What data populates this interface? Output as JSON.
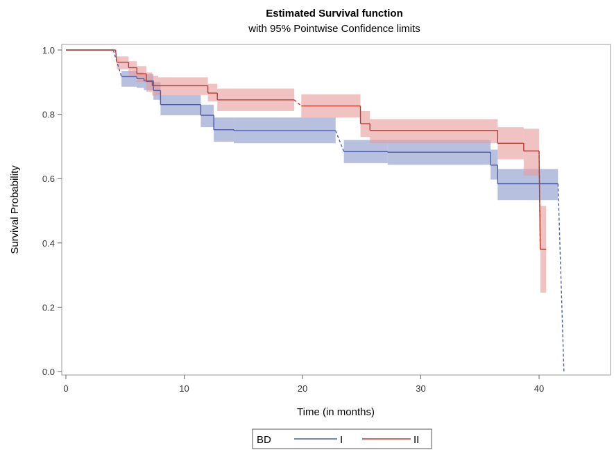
{
  "chart_data": {
    "type": "line",
    "title": "Estimated Survival function",
    "subtitle": "with 95% Pointwise Confidence limits",
    "xlabel": "Time (in months)",
    "ylabel": "Survival Probability",
    "xlim": [
      0,
      46
    ],
    "ylim": [
      0,
      1.02
    ],
    "xticks": [
      0,
      10,
      20,
      30,
      40
    ],
    "xtick_labels": [
      "0",
      "10",
      "20",
      "30",
      "40"
    ],
    "yticks": [
      0,
      0.2,
      0.4,
      0.6,
      0.8,
      1.0
    ],
    "ytick_labels": [
      "0.0",
      "0.2",
      "0.4",
      "0.6",
      "0.8",
      "1.0"
    ],
    "legend": {
      "title": "BD",
      "position": "bottom",
      "entries": [
        {
          "label": "I",
          "color": "#4a5aa8"
        },
        {
          "label": "II",
          "color": "#c0392b"
        }
      ]
    },
    "series": [
      {
        "name": "I",
        "color": "#4a5aa8",
        "band_color": "#8c99cc",
        "steps": [
          {
            "x0": 0,
            "x1": 4.0,
            "y": 1.0,
            "lo": null,
            "hi": null
          },
          {
            "x0": 4.7,
            "x1": 6.0,
            "y": 0.917,
            "lo": 0.886,
            "hi": 0.935
          },
          {
            "x0": 6.0,
            "x1": 6.6,
            "y": 0.911,
            "lo": 0.882,
            "hi": 0.93
          },
          {
            "x0": 6.6,
            "x1": 7.4,
            "y": 0.904,
            "lo": 0.875,
            "hi": 0.925
          },
          {
            "x0": 7.4,
            "x1": 8.0,
            "y": 0.874,
            "lo": 0.845,
            "hi": 0.9
          },
          {
            "x0": 8.0,
            "x1": 11.4,
            "y": 0.83,
            "lo": 0.797,
            "hi": 0.86
          },
          {
            "x0": 11.4,
            "x1": 12.5,
            "y": 0.797,
            "lo": 0.76,
            "hi": 0.83
          },
          {
            "x0": 12.5,
            "x1": 14.2,
            "y": 0.752,
            "lo": 0.715,
            "hi": 0.79
          },
          {
            "x0": 14.2,
            "x1": 22.8,
            "y": 0.749,
            "lo": 0.71,
            "hi": 0.79
          },
          {
            "x0": 23.5,
            "x1": 27.2,
            "y": 0.684,
            "lo": 0.648,
            "hi": 0.72
          },
          {
            "x0": 27.2,
            "x1": 35.9,
            "y": 0.682,
            "lo": 0.643,
            "hi": 0.72
          },
          {
            "x0": 35.9,
            "x1": 36.5,
            "y": 0.642,
            "lo": 0.597,
            "hi": 0.69
          },
          {
            "x0": 36.5,
            "x1": 41.6,
            "y": 0.584,
            "lo": 0.533,
            "hi": 0.63
          }
        ],
        "dashed_drop": {
          "x0": 41.6,
          "x1": 42.1,
          "y0": 0.584,
          "y1": 0.0
        }
      },
      {
        "name": "II",
        "color": "#c0392b",
        "band_color": "#e79a9a",
        "steps": [
          {
            "x0": 0,
            "x1": 4.2,
            "y": 1.0,
            "lo": null,
            "hi": null
          },
          {
            "x0": 4.3,
            "x1": 5.3,
            "y": 0.962,
            "lo": 0.94,
            "hi": 0.98
          },
          {
            "x0": 5.3,
            "x1": 6.0,
            "y": 0.945,
            "lo": 0.92,
            "hi": 0.965
          },
          {
            "x0": 6.0,
            "x1": 6.8,
            "y": 0.926,
            "lo": 0.9,
            "hi": 0.95
          },
          {
            "x0": 6.8,
            "x1": 7.3,
            "y": 0.902,
            "lo": 0.87,
            "hi": 0.93
          },
          {
            "x0": 7.3,
            "x1": 7.8,
            "y": 0.889,
            "lo": 0.858,
            "hi": 0.92
          },
          {
            "x0": 7.8,
            "x1": 12.0,
            "y": 0.889,
            "lo": 0.86,
            "hi": 0.915
          },
          {
            "x0": 12.0,
            "x1": 12.8,
            "y": 0.866,
            "lo": 0.84,
            "hi": 0.895
          },
          {
            "x0": 12.8,
            "x1": 19.3,
            "y": 0.845,
            "lo": 0.81,
            "hi": 0.88
          },
          {
            "x0": 19.9,
            "x1": 24.9,
            "y": 0.826,
            "lo": 0.79,
            "hi": 0.862
          },
          {
            "x0": 24.9,
            "x1": 25.7,
            "y": 0.771,
            "lo": 0.73,
            "hi": 0.81
          },
          {
            "x0": 25.7,
            "x1": 36.5,
            "y": 0.75,
            "lo": 0.71,
            "hi": 0.785
          },
          {
            "x0": 36.5,
            "x1": 38.7,
            "y": 0.71,
            "lo": 0.66,
            "hi": 0.76
          },
          {
            "x0": 38.7,
            "x1": 40.0,
            "y": 0.686,
            "lo": 0.61,
            "hi": 0.755
          },
          {
            "x0": 40.1,
            "x1": 40.6,
            "y": 0.38,
            "lo": 0.245,
            "hi": 0.515
          }
        ],
        "dashed_drop": {
          "x0": 40.0,
          "x1": 40.1,
          "y0": 0.686,
          "y1": 0.38
        }
      }
    ]
  }
}
